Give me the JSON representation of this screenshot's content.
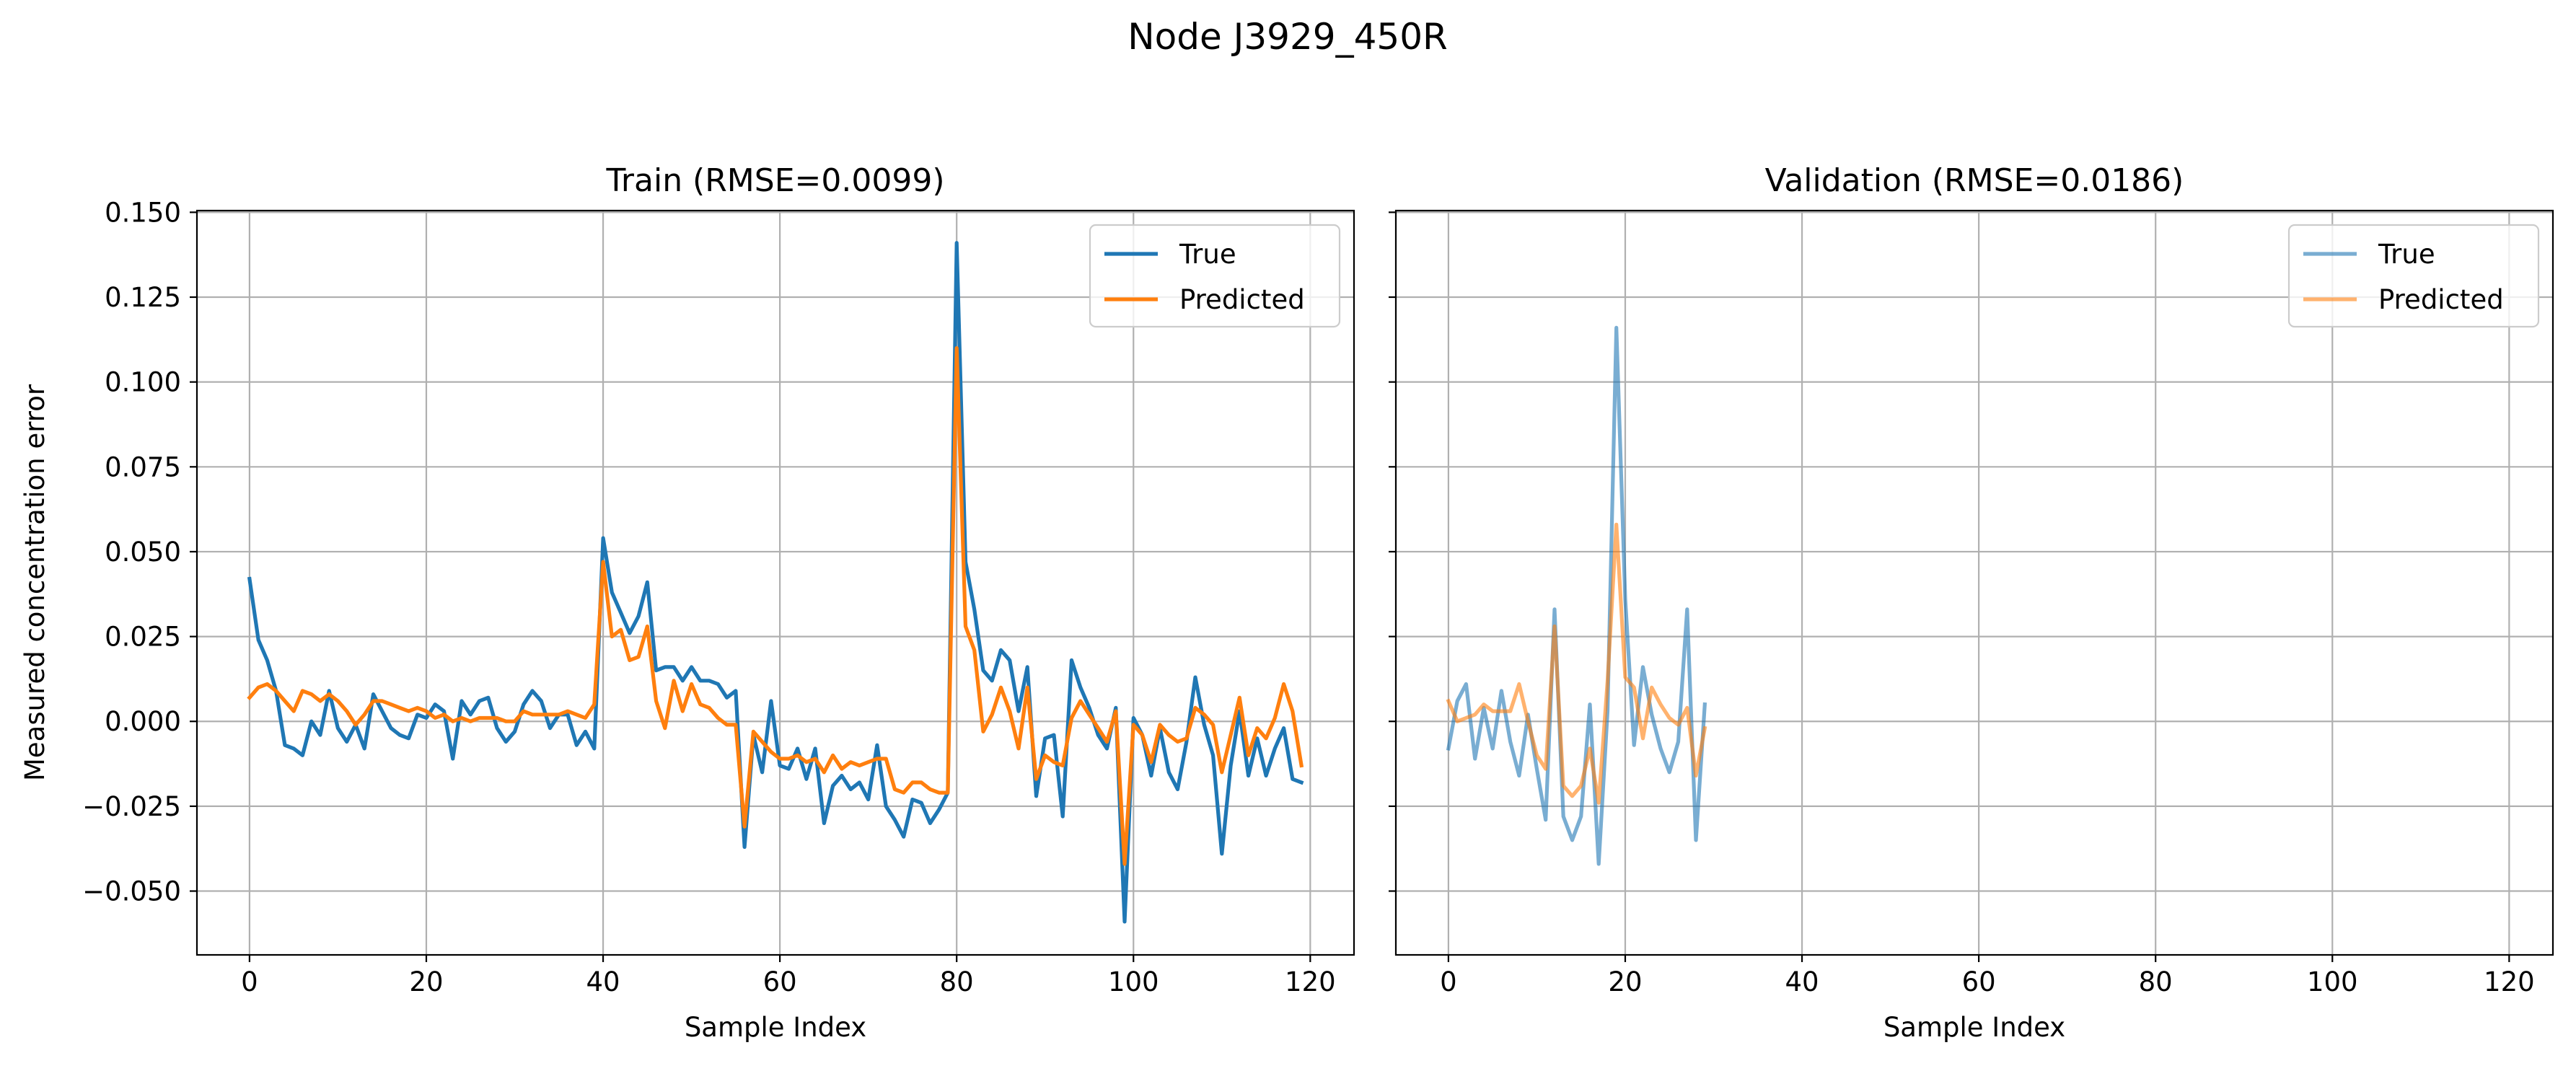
{
  "suptitle": "Node J3929_450R",
  "colors": {
    "true": "#1f77b4",
    "predicted": "#ff7f0e"
  },
  "chart_data": [
    {
      "type": "line",
      "title": "Train (RMSE=0.0099)",
      "xlabel": "Sample Index",
      "ylabel": "Measured concentration error",
      "xlim": [
        -5.95,
        124.95
      ],
      "ylim": [
        -0.0688,
        0.1505
      ],
      "xticks": [
        0,
        20,
        40,
        60,
        80,
        100,
        120
      ],
      "xtick_labels": [
        "0",
        "20",
        "40",
        "60",
        "80",
        "100",
        "120"
      ],
      "yticks": [
        -0.05,
        -0.025,
        0.0,
        0.025,
        0.05,
        0.075,
        0.1,
        0.125,
        0.15
      ],
      "ytick_labels": [
        "−0.050",
        "−0.025",
        "0.000",
        "0.025",
        "0.050",
        "0.075",
        "0.100",
        "0.125",
        "0.150"
      ],
      "grid": true,
      "legend_location": "top-right",
      "series": [
        {
          "name": "True",
          "alpha": 1.0,
          "x_start": 0,
          "values": [
            0.042,
            0.024,
            0.018,
            0.009,
            -0.007,
            -0.008,
            -0.01,
            0.0,
            -0.004,
            0.009,
            -0.002,
            -0.006,
            -0.001,
            -0.008,
            0.008,
            0.003,
            -0.002,
            -0.004,
            -0.005,
            0.002,
            0.001,
            0.005,
            0.003,
            -0.011,
            0.006,
            0.002,
            0.006,
            0.007,
            -0.002,
            -0.006,
            -0.003,
            0.005,
            0.009,
            0.006,
            -0.002,
            0.002,
            0.002,
            -0.007,
            -0.003,
            -0.008,
            0.054,
            0.038,
            0.032,
            0.026,
            0.031,
            0.041,
            0.015,
            0.016,
            0.016,
            0.012,
            0.016,
            0.012,
            0.012,
            0.011,
            0.007,
            0.009,
            -0.037,
            -0.004,
            -0.015,
            0.006,
            -0.013,
            -0.014,
            -0.008,
            -0.017,
            -0.008,
            -0.03,
            -0.019,
            -0.016,
            -0.02,
            -0.018,
            -0.023,
            -0.007,
            -0.025,
            -0.029,
            -0.034,
            -0.023,
            -0.024,
            -0.03,
            -0.026,
            -0.021,
            0.141,
            0.047,
            0.033,
            0.015,
            0.012,
            0.021,
            0.018,
            0.003,
            0.016,
            -0.022,
            -0.005,
            -0.004,
            -0.028,
            0.018,
            0.01,
            0.004,
            -0.004,
            -0.008,
            0.004,
            -0.059,
            0.001,
            -0.004,
            -0.016,
            -0.002,
            -0.015,
            -0.02,
            -0.006,
            0.013,
            -0.001,
            -0.01,
            -0.039,
            -0.013,
            0.003,
            -0.016,
            -0.005,
            -0.016,
            -0.008,
            -0.002,
            -0.017,
            -0.018
          ]
        },
        {
          "name": "Predicted",
          "alpha": 1.0,
          "x_start": 0,
          "values": [
            0.007,
            0.01,
            0.011,
            0.009,
            0.006,
            0.003,
            0.009,
            0.008,
            0.006,
            0.008,
            0.006,
            0.003,
            -0.001,
            0.002,
            0.006,
            0.006,
            0.005,
            0.004,
            0.003,
            0.004,
            0.003,
            0.001,
            0.002,
            0.0,
            0.001,
            0.0,
            0.001,
            0.001,
            0.001,
            0.0,
            0.0,
            0.003,
            0.002,
            0.002,
            0.002,
            0.002,
            0.003,
            0.002,
            0.001,
            0.005,
            0.047,
            0.025,
            0.027,
            0.018,
            0.019,
            0.028,
            0.006,
            -0.002,
            0.012,
            0.003,
            0.011,
            0.005,
            0.004,
            0.001,
            -0.001,
            -0.001,
            -0.031,
            -0.003,
            -0.006,
            -0.009,
            -0.011,
            -0.011,
            -0.01,
            -0.012,
            -0.011,
            -0.015,
            -0.01,
            -0.014,
            -0.012,
            -0.013,
            -0.012,
            -0.011,
            -0.011,
            -0.02,
            -0.021,
            -0.018,
            -0.018,
            -0.02,
            -0.021,
            -0.021,
            0.11,
            0.028,
            0.021,
            -0.003,
            0.002,
            0.01,
            0.003,
            -0.008,
            0.01,
            -0.017,
            -0.01,
            -0.012,
            -0.013,
            0.001,
            0.006,
            0.002,
            -0.002,
            -0.006,
            0.003,
            -0.042,
            -0.001,
            -0.004,
            -0.012,
            -0.001,
            -0.004,
            -0.006,
            -0.005,
            0.004,
            0.002,
            -0.001,
            -0.015,
            -0.004,
            0.007,
            -0.01,
            -0.002,
            -0.005,
            0.001,
            0.011,
            0.003,
            -0.013
          ]
        }
      ]
    },
    {
      "type": "line",
      "title": "Validation (RMSE=0.0186)",
      "xlabel": "Sample Index",
      "ylabel": "",
      "xlim": [
        -5.95,
        124.95
      ],
      "ylim": [
        -0.0688,
        0.1505
      ],
      "xticks": [
        0,
        20,
        40,
        60,
        80,
        100,
        120
      ],
      "xtick_labels": [
        "0",
        "20",
        "40",
        "60",
        "80",
        "100",
        "120"
      ],
      "yticks": [
        -0.05,
        -0.025,
        0.0,
        0.025,
        0.05,
        0.075,
        0.1,
        0.125,
        0.15
      ],
      "ytick_labels": [],
      "grid": true,
      "legend_location": "top-right",
      "series": [
        {
          "name": "True",
          "alpha": 0.6,
          "x_start": 0,
          "values": [
            -0.008,
            0.006,
            0.011,
            -0.011,
            0.004,
            -0.008,
            0.009,
            -0.006,
            -0.016,
            0.002,
            -0.014,
            -0.029,
            0.033,
            -0.028,
            -0.035,
            -0.028,
            0.005,
            -0.042,
            0.003,
            0.116,
            0.036,
            -0.007,
            0.016,
            0.002,
            -0.008,
            -0.015,
            -0.006,
            0.033,
            -0.035,
            0.005
          ]
        },
        {
          "name": "Predicted",
          "alpha": 0.6,
          "x_start": 0,
          "values": [
            0.006,
            0.0,
            0.001,
            0.002,
            0.005,
            0.003,
            0.003,
            0.003,
            0.011,
            0.0,
            -0.01,
            -0.014,
            0.028,
            -0.019,
            -0.022,
            -0.019,
            -0.008,
            -0.024,
            0.012,
            0.058,
            0.013,
            0.01,
            -0.005,
            0.01,
            0.005,
            0.001,
            -0.001,
            0.004,
            -0.016,
            -0.002
          ]
        }
      ]
    }
  ]
}
